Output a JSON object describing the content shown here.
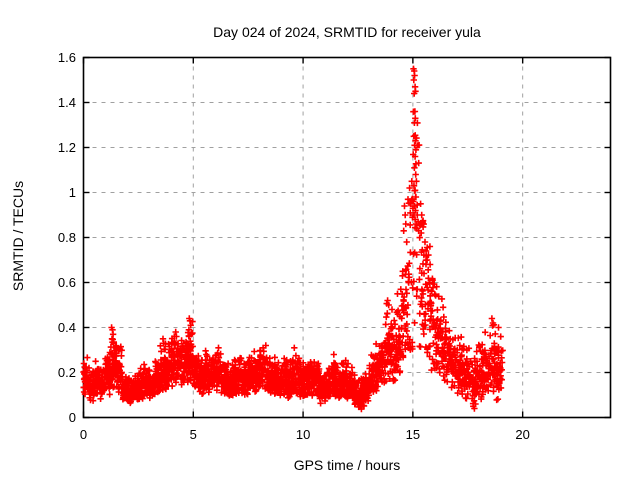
{
  "chart": {
    "title": "Day 024 of 2024, SRMTID for receiver yula",
    "xlabel": "GPS time / hours",
    "ylabel": "SRMTID / TECUs"
  },
  "chart_data": {
    "type": "scatter",
    "title": "Day 024 of 2024, SRMTID for receiver yula",
    "xlabel": "GPS time / hours",
    "ylabel": "SRMTID / TECUs",
    "marker": "plus",
    "series_color": "#ff0000",
    "grid_color": "#a0a0a0",
    "grid": true,
    "legend": "none",
    "xlim": [
      0,
      24
    ],
    "ylim": [
      0,
      1.6
    ],
    "xticks": {
      "values": [
        0,
        5,
        10,
        15,
        20
      ],
      "labels": [
        "0",
        "5",
        "10",
        "15",
        "20"
      ]
    },
    "yticks": {
      "values": [
        0,
        0.2,
        0.4,
        0.6,
        0.8,
        1.0,
        1.2,
        1.4,
        1.6
      ],
      "labels": [
        "0",
        "0.2",
        "0.4",
        "0.6",
        "0.8",
        "1",
        "1.2",
        "1.4",
        "1.6"
      ]
    },
    "x_data_extent": [
      0,
      19.1
    ],
    "peak_point": [
      15.03,
      1.55
    ],
    "encoding_note": "band_bins encode the dense noisy scatter envelope read from the pixels: [x_start_hr, x_end_hr, y_min_TECUs, y_max_TECUs, approx_point_count, spread_mode(0=bottom-weighted band,1=uniform spike)]. extra_points are individually distinguishable markers (spike tips, outliers).",
    "band_bins": [
      [
        0.0,
        0.25,
        0.09,
        0.28,
        40,
        0
      ],
      [
        0.25,
        0.5,
        0.07,
        0.22,
        40,
        0
      ],
      [
        0.5,
        0.75,
        0.1,
        0.26,
        40,
        0
      ],
      [
        0.75,
        1.0,
        0.08,
        0.23,
        40,
        0
      ],
      [
        1.0,
        1.25,
        0.1,
        0.32,
        40,
        0
      ],
      [
        1.25,
        1.5,
        0.12,
        0.41,
        38,
        0
      ],
      [
        1.5,
        1.75,
        0.1,
        0.34,
        40,
        0
      ],
      [
        1.75,
        2.0,
        0.06,
        0.21,
        40,
        0
      ],
      [
        2.0,
        2.25,
        0.05,
        0.18,
        40,
        0
      ],
      [
        2.25,
        2.5,
        0.07,
        0.2,
        40,
        0
      ],
      [
        2.5,
        2.75,
        0.08,
        0.23,
        40,
        0
      ],
      [
        2.75,
        3.0,
        0.09,
        0.26,
        40,
        0
      ],
      [
        3.0,
        3.25,
        0.08,
        0.23,
        40,
        0
      ],
      [
        3.25,
        3.5,
        0.1,
        0.3,
        40,
        0
      ],
      [
        3.5,
        3.75,
        0.11,
        0.36,
        40,
        0
      ],
      [
        3.75,
        4.0,
        0.12,
        0.33,
        40,
        0
      ],
      [
        4.0,
        4.25,
        0.13,
        0.39,
        40,
        0
      ],
      [
        4.25,
        4.5,
        0.14,
        0.36,
        40,
        0
      ],
      [
        4.5,
        4.75,
        0.15,
        0.41,
        40,
        0
      ],
      [
        4.75,
        5.0,
        0.14,
        0.45,
        38,
        0
      ],
      [
        5.0,
        5.25,
        0.12,
        0.31,
        40,
        0
      ],
      [
        5.25,
        5.5,
        0.1,
        0.28,
        40,
        0
      ],
      [
        5.5,
        5.75,
        0.11,
        0.3,
        40,
        0
      ],
      [
        5.75,
        6.0,
        0.1,
        0.28,
        40,
        0
      ],
      [
        6.0,
        6.25,
        0.11,
        0.32,
        40,
        0
      ],
      [
        6.25,
        6.5,
        0.1,
        0.28,
        40,
        0
      ],
      [
        6.5,
        6.75,
        0.08,
        0.25,
        40,
        0
      ],
      [
        6.75,
        7.0,
        0.09,
        0.27,
        40,
        0
      ],
      [
        7.0,
        7.25,
        0.1,
        0.3,
        40,
        0
      ],
      [
        7.25,
        7.5,
        0.08,
        0.26,
        40,
        0
      ],
      [
        7.5,
        7.75,
        0.1,
        0.28,
        40,
        0
      ],
      [
        7.75,
        8.0,
        0.11,
        0.32,
        40,
        0
      ],
      [
        8.0,
        8.25,
        0.12,
        0.33,
        40,
        0
      ],
      [
        8.25,
        8.5,
        0.1,
        0.3,
        40,
        0
      ],
      [
        8.5,
        8.75,
        0.1,
        0.28,
        40,
        0
      ],
      [
        8.75,
        9.0,
        0.08,
        0.25,
        40,
        0
      ],
      [
        9.0,
        9.25,
        0.1,
        0.29,
        40,
        0
      ],
      [
        9.25,
        9.5,
        0.08,
        0.26,
        40,
        0
      ],
      [
        9.5,
        9.75,
        0.1,
        0.31,
        40,
        0
      ],
      [
        9.75,
        10.0,
        0.08,
        0.27,
        40,
        0
      ],
      [
        10.0,
        10.25,
        0.08,
        0.25,
        40,
        0
      ],
      [
        10.25,
        10.5,
        0.09,
        0.28,
        40,
        0
      ],
      [
        10.5,
        10.75,
        0.08,
        0.26,
        40,
        0
      ],
      [
        10.75,
        11.0,
        0.06,
        0.22,
        40,
        0
      ],
      [
        11.0,
        11.25,
        0.08,
        0.25,
        40,
        0
      ],
      [
        11.25,
        11.5,
        0.09,
        0.28,
        40,
        0
      ],
      [
        11.5,
        11.75,
        0.08,
        0.26,
        40,
        0
      ],
      [
        11.75,
        12.0,
        0.09,
        0.28,
        40,
        0
      ],
      [
        12.0,
        12.25,
        0.07,
        0.25,
        40,
        0
      ],
      [
        12.25,
        12.5,
        0.05,
        0.21,
        40,
        0
      ],
      [
        12.5,
        12.75,
        0.03,
        0.19,
        40,
        0
      ],
      [
        12.75,
        13.0,
        0.05,
        0.22,
        40,
        0
      ],
      [
        13.0,
        13.25,
        0.09,
        0.29,
        40,
        0
      ],
      [
        13.25,
        13.5,
        0.11,
        0.33,
        40,
        0
      ],
      [
        13.5,
        13.75,
        0.13,
        0.42,
        38,
        0
      ],
      [
        13.75,
        14.0,
        0.15,
        0.53,
        36,
        0
      ],
      [
        14.0,
        14.25,
        0.15,
        0.5,
        36,
        0
      ],
      [
        14.25,
        14.5,
        0.18,
        0.56,
        36,
        0
      ],
      [
        14.5,
        14.75,
        0.22,
        0.72,
        30,
        1
      ],
      [
        14.75,
        15.0,
        0.3,
        1.0,
        26,
        1
      ],
      [
        15.0,
        15.3,
        0.4,
        1.4,
        24,
        1
      ],
      [
        15.3,
        15.55,
        0.3,
        0.95,
        28,
        1
      ],
      [
        15.55,
        15.8,
        0.26,
        0.76,
        32,
        1
      ],
      [
        15.8,
        16.1,
        0.2,
        0.62,
        36,
        1
      ],
      [
        16.1,
        16.4,
        0.18,
        0.55,
        38,
        0
      ],
      [
        16.4,
        16.7,
        0.15,
        0.48,
        38,
        0
      ],
      [
        16.7,
        17.0,
        0.13,
        0.42,
        38,
        0
      ],
      [
        17.0,
        17.3,
        0.1,
        0.38,
        38,
        0
      ],
      [
        17.3,
        17.6,
        0.08,
        0.35,
        38,
        0
      ],
      [
        17.6,
        17.9,
        0.04,
        0.33,
        38,
        0
      ],
      [
        17.9,
        18.2,
        0.06,
        0.35,
        38,
        0
      ],
      [
        18.2,
        18.5,
        0.1,
        0.4,
        38,
        0
      ],
      [
        18.5,
        18.8,
        0.1,
        0.45,
        38,
        0
      ],
      [
        18.8,
        19.1,
        0.06,
        0.41,
        38,
        0
      ]
    ],
    "extra_points": [
      [
        1.28,
        0.4
      ],
      [
        1.32,
        0.39
      ],
      [
        1.35,
        0.37
      ],
      [
        1.3,
        0.35
      ],
      [
        1.38,
        0.33
      ],
      [
        3.62,
        0.35
      ],
      [
        3.65,
        0.33
      ],
      [
        4.2,
        0.38
      ],
      [
        4.23,
        0.36
      ],
      [
        4.82,
        0.44
      ],
      [
        4.85,
        0.43
      ],
      [
        4.88,
        0.41
      ],
      [
        4.8,
        0.39
      ],
      [
        4.9,
        0.37
      ],
      [
        6.15,
        0.31
      ],
      [
        8.3,
        0.32
      ],
      [
        9.6,
        0.31
      ],
      [
        11.4,
        0.28
      ],
      [
        13.85,
        0.52
      ],
      [
        13.9,
        0.5
      ],
      [
        14.05,
        0.48
      ],
      [
        14.3,
        0.55
      ],
      [
        14.45,
        0.57
      ],
      [
        14.58,
        0.83
      ],
      [
        14.62,
        0.94
      ],
      [
        14.65,
        0.9
      ],
      [
        14.68,
        0.86
      ],
      [
        14.72,
        0.78
      ],
      [
        14.78,
        0.97
      ],
      [
        14.85,
        1.02
      ],
      [
        14.9,
        0.95
      ],
      [
        14.95,
        1.05
      ],
      [
        15.03,
        1.55
      ],
      [
        15.06,
        1.54
      ],
      [
        15.08,
        1.52
      ],
      [
        15.04,
        1.5
      ],
      [
        15.1,
        1.47
      ],
      [
        15.12,
        1.45
      ],
      [
        15.06,
        1.44
      ],
      [
        15.09,
        1.36
      ],
      [
        15.11,
        1.33
      ],
      [
        15.07,
        1.31
      ],
      [
        15.04,
        1.25
      ],
      [
        15.12,
        1.23
      ],
      [
        15.08,
        1.21
      ],
      [
        15.14,
        1.19
      ],
      [
        15.1,
        1.16
      ],
      [
        15.07,
        1.11
      ],
      [
        15.13,
        1.08
      ],
      [
        15.16,
        1.05
      ],
      [
        15.05,
        1.03
      ],
      [
        15.1,
        1.01
      ],
      [
        15.14,
        0.98
      ],
      [
        15.02,
        0.96
      ],
      [
        15.0,
        0.93
      ],
      [
        15.05,
        0.9
      ],
      [
        15.1,
        0.88
      ],
      [
        15.15,
        0.86
      ],
      [
        15.2,
        0.9
      ],
      [
        15.24,
        0.87
      ],
      [
        15.18,
        0.84
      ],
      [
        15.26,
        0.83
      ],
      [
        15.3,
        0.86
      ],
      [
        15.12,
        0.92
      ],
      [
        15.35,
        0.95
      ],
      [
        15.4,
        0.9
      ],
      [
        15.44,
        0.87
      ],
      [
        15.38,
        0.82
      ],
      [
        15.55,
        0.78
      ],
      [
        15.6,
        0.74
      ],
      [
        15.65,
        0.7
      ],
      [
        18.6,
        0.44
      ],
      [
        18.65,
        0.42
      ],
      [
        18.9,
        0.4
      ],
      [
        17.75,
        0.05
      ],
      [
        17.8,
        0.04
      ],
      [
        17.85,
        0.06
      ]
    ]
  }
}
